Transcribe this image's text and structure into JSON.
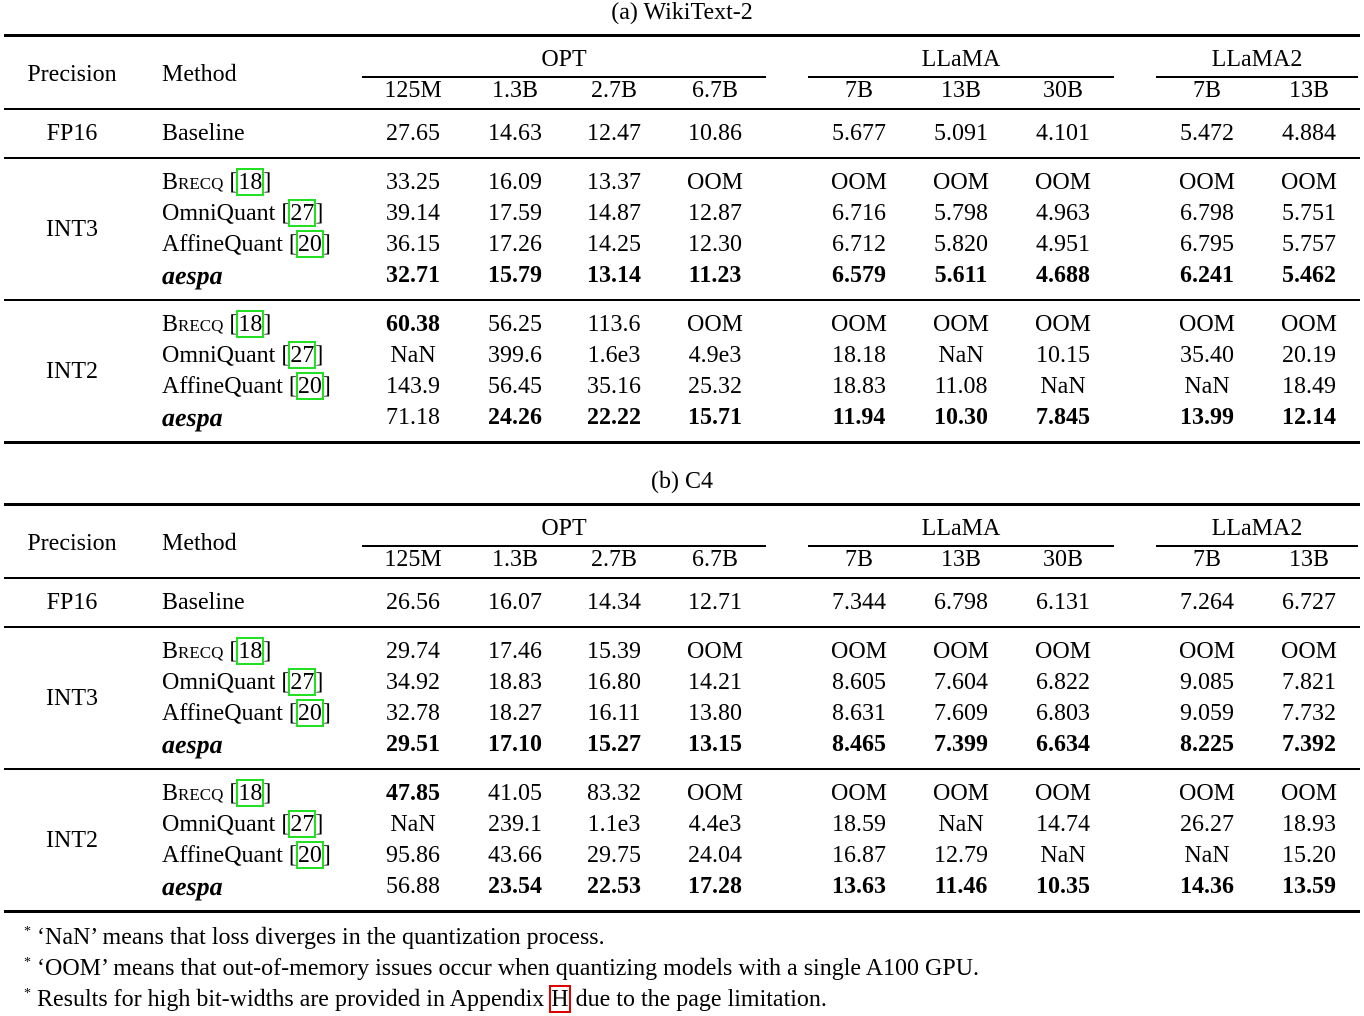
{
  "tables": [
    {
      "title": "(a) WikiText-2",
      "header": {
        "precision": "Precision",
        "method": "Method",
        "groups": [
          "OPT",
          "LLaMA",
          "LLaMA2"
        ],
        "models": [
          "125M",
          "1.3B",
          "2.7B",
          "6.7B",
          "7B",
          "13B",
          "30B",
          "7B",
          "13B"
        ]
      },
      "sections": [
        {
          "precision": "FP16",
          "rows": [
            {
              "method": "Baseline",
              "cite": "",
              "values": [
                "27.65",
                "14.63",
                "12.47",
                "10.86",
                "5.677",
                "5.091",
                "4.101",
                "5.472",
                "4.884"
              ],
              "bold": []
            }
          ]
        },
        {
          "precision": "INT3",
          "rows": [
            {
              "method": "Brecq",
              "cite": "18",
              "values": [
                "33.25",
                "16.09",
                "13.37",
                "OOM",
                "OOM",
                "OOM",
                "OOM",
                "OOM",
                "OOM"
              ],
              "bold": []
            },
            {
              "method": "OmniQuant",
              "cite": "27",
              "values": [
                "39.14",
                "17.59",
                "14.87",
                "12.87",
                "6.716",
                "5.798",
                "4.963",
                "6.798",
                "5.751"
              ],
              "bold": []
            },
            {
              "method": "AffineQuant",
              "cite": "20",
              "values": [
                "36.15",
                "17.26",
                "14.25",
                "12.30",
                "6.712",
                "5.820",
                "4.951",
                "6.795",
                "5.757"
              ],
              "bold": []
            },
            {
              "method": "aespa",
              "cite": "",
              "values": [
                "32.71",
                "15.79",
                "13.14",
                "11.23",
                "6.579",
                "5.611",
                "4.688",
                "6.241",
                "5.462"
              ],
              "bold": [
                0,
                1,
                2,
                3,
                4,
                5,
                6,
                7,
                8
              ]
            }
          ]
        },
        {
          "precision": "INT2",
          "rows": [
            {
              "method": "Brecq",
              "cite": "18",
              "values": [
                "60.38",
                "56.25",
                "113.6",
                "OOM",
                "OOM",
                "OOM",
                "OOM",
                "OOM",
                "OOM"
              ],
              "bold": [
                0
              ]
            },
            {
              "method": "OmniQuant",
              "cite": "27",
              "values": [
                "NaN",
                "399.6",
                "1.6e3",
                "4.9e3",
                "18.18",
                "NaN",
                "10.15",
                "35.40",
                "20.19"
              ],
              "bold": []
            },
            {
              "method": "AffineQuant",
              "cite": "20",
              "values": [
                "143.9",
                "56.45",
                "35.16",
                "25.32",
                "18.83",
                "11.08",
                "NaN",
                "NaN",
                "18.49"
              ],
              "bold": []
            },
            {
              "method": "aespa",
              "cite": "",
              "values": [
                "71.18",
                "24.26",
                "22.22",
                "15.71",
                "11.94",
                "10.30",
                "7.845",
                "13.99",
                "12.14"
              ],
              "bold": [
                1,
                2,
                3,
                4,
                5,
                6,
                7,
                8
              ]
            }
          ]
        }
      ]
    },
    {
      "title": "(b) C4",
      "header": {
        "precision": "Precision",
        "method": "Method",
        "groups": [
          "OPT",
          "LLaMA",
          "LLaMA2"
        ],
        "models": [
          "125M",
          "1.3B",
          "2.7B",
          "6.7B",
          "7B",
          "13B",
          "30B",
          "7B",
          "13B"
        ]
      },
      "sections": [
        {
          "precision": "FP16",
          "rows": [
            {
              "method": "Baseline",
              "cite": "",
              "values": [
                "26.56",
                "16.07",
                "14.34",
                "12.71",
                "7.344",
                "6.798",
                "6.131",
                "7.264",
                "6.727"
              ],
              "bold": []
            }
          ]
        },
        {
          "precision": "INT3",
          "rows": [
            {
              "method": "Brecq",
              "cite": "18",
              "values": [
                "29.74",
                "17.46",
                "15.39",
                "OOM",
                "OOM",
                "OOM",
                "OOM",
                "OOM",
                "OOM"
              ],
              "bold": []
            },
            {
              "method": "OmniQuant",
              "cite": "27",
              "values": [
                "34.92",
                "18.83",
                "16.80",
                "14.21",
                "8.605",
                "7.604",
                "6.822",
                "9.085",
                "7.821"
              ],
              "bold": []
            },
            {
              "method": "AffineQuant",
              "cite": "20",
              "values": [
                "32.78",
                "18.27",
                "16.11",
                "13.80",
                "8.631",
                "7.609",
                "6.803",
                "9.059",
                "7.732"
              ],
              "bold": []
            },
            {
              "method": "aespa",
              "cite": "",
              "values": [
                "29.51",
                "17.10",
                "15.27",
                "13.15",
                "8.465",
                "7.399",
                "6.634",
                "8.225",
                "7.392"
              ],
              "bold": [
                0,
                1,
                2,
                3,
                4,
                5,
                6,
                7,
                8
              ]
            }
          ]
        },
        {
          "precision": "INT2",
          "rows": [
            {
              "method": "Brecq",
              "cite": "18",
              "values": [
                "47.85",
                "41.05",
                "83.32",
                "OOM",
                "OOM",
                "OOM",
                "OOM",
                "OOM",
                "OOM"
              ],
              "bold": [
                0
              ]
            },
            {
              "method": "OmniQuant",
              "cite": "27",
              "values": [
                "NaN",
                "239.1",
                "1.1e3",
                "4.4e3",
                "18.59",
                "NaN",
                "14.74",
                "26.27",
                "18.93"
              ],
              "bold": []
            },
            {
              "method": "AffineQuant",
              "cite": "20",
              "values": [
                "95.86",
                "43.66",
                "29.75",
                "24.04",
                "16.87",
                "12.79",
                "NaN",
                "NaN",
                "15.20"
              ],
              "bold": []
            },
            {
              "method": "aespa",
              "cite": "",
              "values": [
                "56.88",
                "23.54",
                "22.53",
                "17.28",
                "13.63",
                "11.46",
                "10.35",
                "14.36",
                "13.59"
              ],
              "bold": [
                1,
                2,
                3,
                4,
                5,
                6,
                7,
                8
              ]
            }
          ]
        }
      ]
    }
  ],
  "footnotes": [
    {
      "marker": "*",
      "text": "‘NaN’ means that loss diverges in the quantization process."
    },
    {
      "marker": "*",
      "text": "‘OOM’ means that out-of-memory issues occur when quantizing models with a single A100 GPU."
    },
    {
      "marker": "*",
      "text_before": "Results for high bit-widths are provided in Appendix ",
      "link": "H",
      "text_after": " due to the page limitation."
    }
  ]
}
